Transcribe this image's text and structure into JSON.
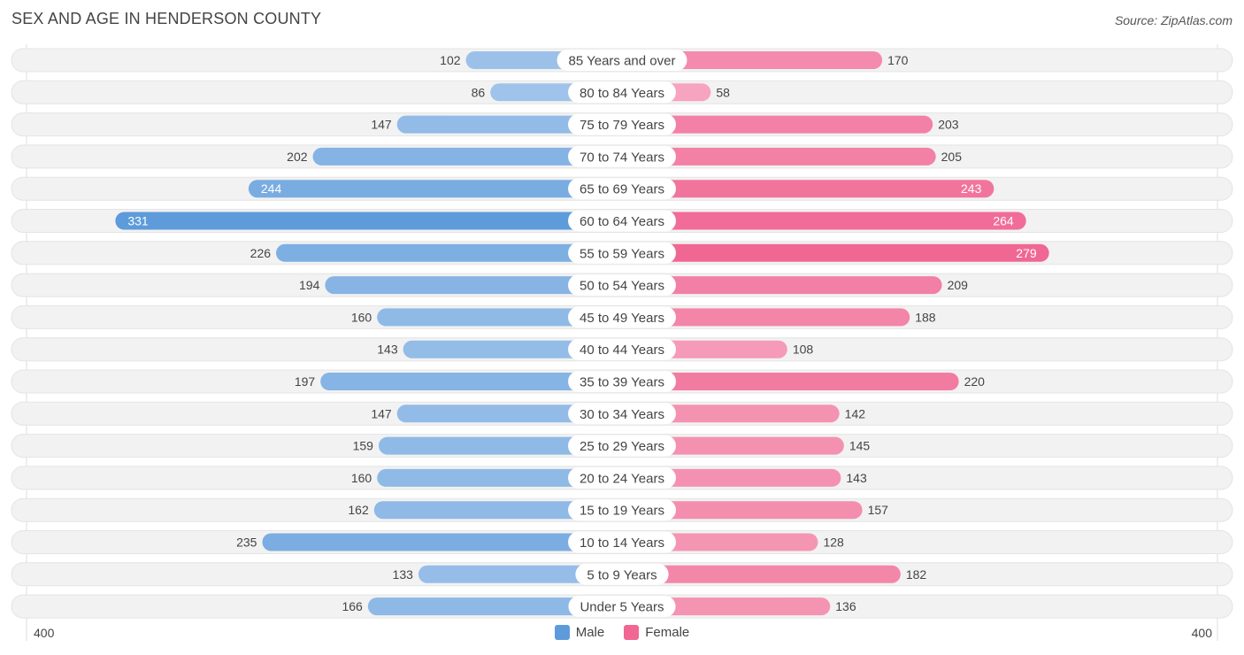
{
  "title": "SEX AND AGE IN HENDERSON COUNTY",
  "source": "Source: ZipAtlas.com",
  "axis": {
    "left_label": "400",
    "right_label": "400"
  },
  "legend": {
    "male_label": "Male",
    "female_label": "Female"
  },
  "colors": {
    "male_light": "#a9c9ec",
    "male_dark": "#5d9bdb",
    "female_light": "#f7aac3",
    "female_dark": "#f06794",
    "row_bg": "#f2f2f2"
  },
  "chart_data": {
    "type": "bar",
    "orientation": "horizontal-diverging",
    "title": "SEX AND AGE IN HENDERSON COUNTY",
    "xlim": [
      -400,
      400
    ],
    "categories": [
      "85 Years and over",
      "80 to 84 Years",
      "75 to 79 Years",
      "70 to 74 Years",
      "65 to 69 Years",
      "60 to 64 Years",
      "55 to 59 Years",
      "50 to 54 Years",
      "45 to 49 Years",
      "40 to 44 Years",
      "35 to 39 Years",
      "30 to 34 Years",
      "25 to 29 Years",
      "20 to 24 Years",
      "15 to 19 Years",
      "10 to 14 Years",
      "5 to 9 Years",
      "Under 5 Years"
    ],
    "series": [
      {
        "name": "Male",
        "values": [
          102,
          86,
          147,
          202,
          244,
          331,
          226,
          194,
          160,
          143,
          197,
          147,
          159,
          160,
          162,
          235,
          133,
          166
        ]
      },
      {
        "name": "Female",
        "values": [
          170,
          58,
          203,
          205,
          243,
          264,
          279,
          209,
          188,
          108,
          220,
          142,
          145,
          143,
          157,
          128,
          182,
          136
        ]
      }
    ],
    "legend_position": "bottom-center"
  }
}
